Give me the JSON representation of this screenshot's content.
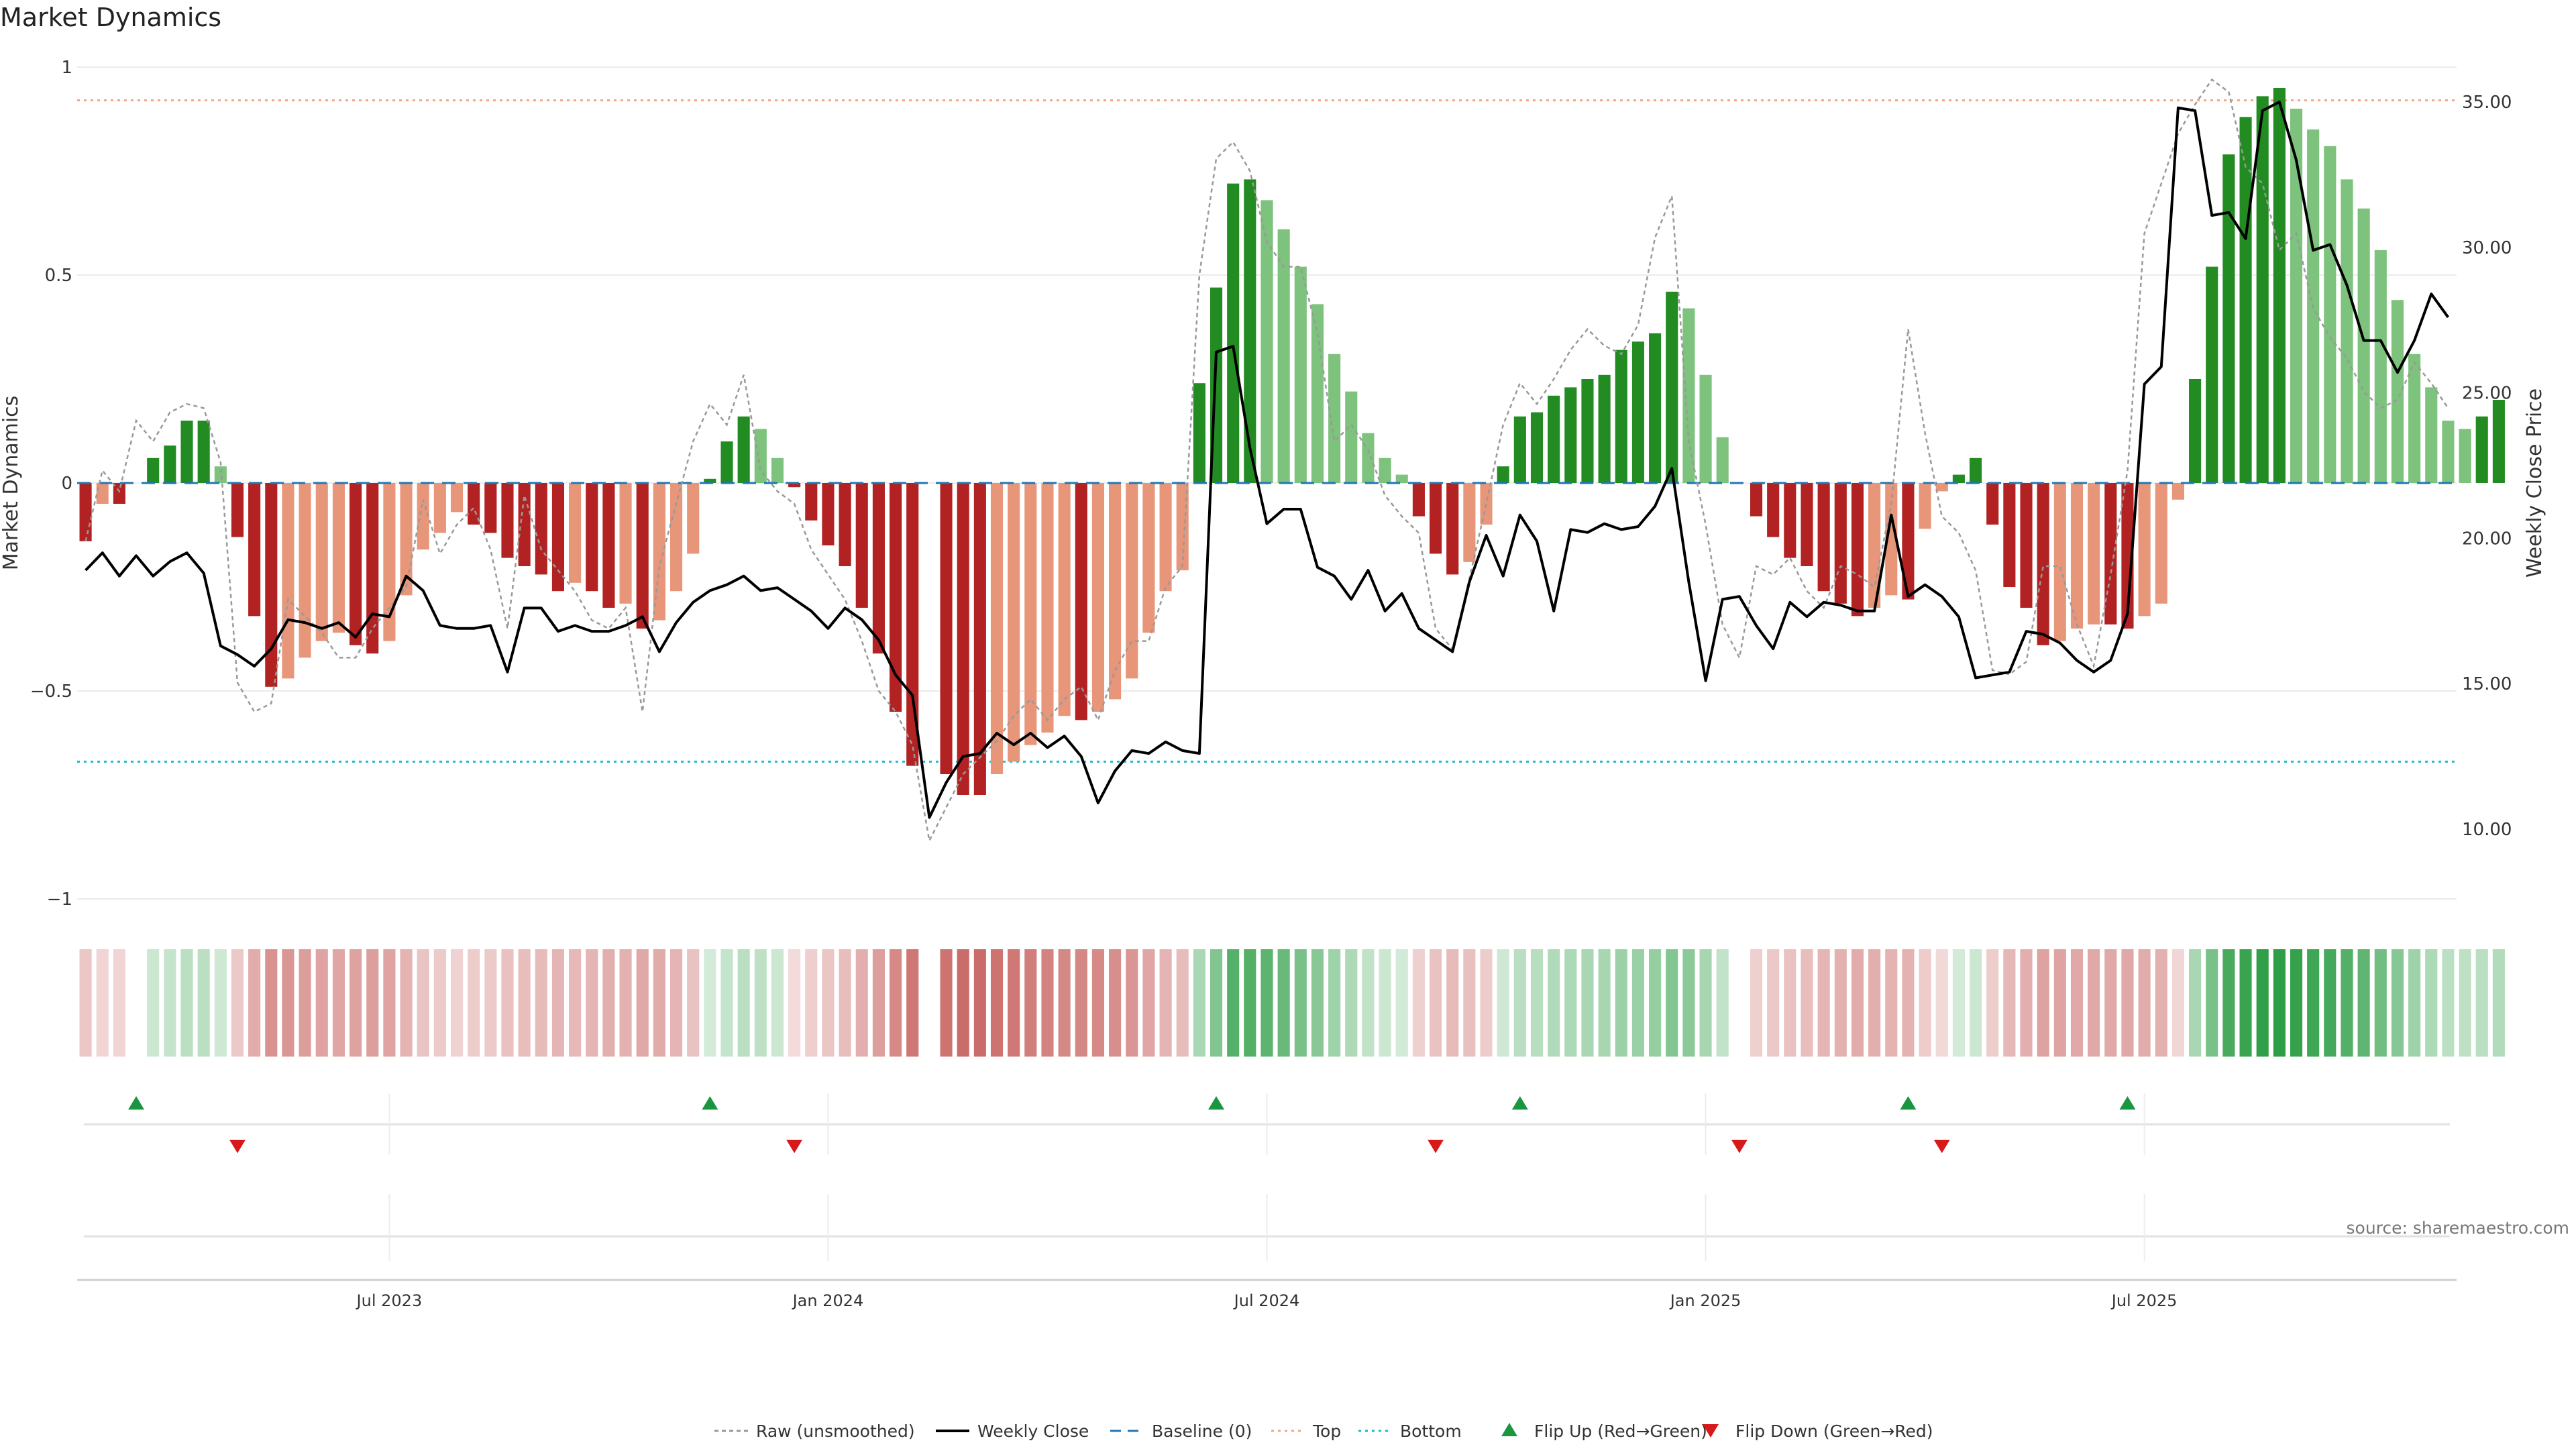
{
  "title": "Market Dynamics",
  "source": "source: sharemaestro.com",
  "colors": {
    "strong_green": "#228B22",
    "light_green": "#7DC27D",
    "strong_red": "#B22222",
    "light_red": "#E8967A",
    "close_line": "#000000",
    "raw_line": "#999999",
    "baseline": "#1f77b4",
    "top": "#F4A582",
    "bottom": "#17becf",
    "flip_up": "#1a9641",
    "flip_down": "#d7191c"
  },
  "chart_data": {
    "type": "bar",
    "title": "Market Dynamics",
    "ylabel": "Market Dynamics",
    "y2label": "Weekly Close Price",
    "ylim": [
      -1,
      1
    ],
    "y2lim": [
      7.6,
      36.2
    ],
    "yticks": [
      {
        "value": 1,
        "label": "1"
      },
      {
        "value": 0.5,
        "label": "0.5"
      },
      {
        "value": 0,
        "label": "0"
      },
      {
        "value": -0.5,
        "label": "−0.5"
      },
      {
        "value": -1,
        "label": "−1"
      }
    ],
    "y2ticks": [
      {
        "value": 35,
        "label": "35.00"
      },
      {
        "value": 30,
        "label": "30.00"
      },
      {
        "value": 25,
        "label": "25.00"
      },
      {
        "value": 20,
        "label": "20.00"
      },
      {
        "value": 15,
        "label": "15.00"
      },
      {
        "value": 10,
        "label": "10.00"
      }
    ],
    "xticks": [
      {
        "week": 18,
        "label": "Jul 2023"
      },
      {
        "week": 44,
        "label": "Jan 2024"
      },
      {
        "week": 70,
        "label": "Jul 2024"
      },
      {
        "week": 96,
        "label": "Jan 2025"
      },
      {
        "week": 122,
        "label": "Jul 2025"
      }
    ],
    "x_range": [
      -0.5,
      140.5
    ],
    "top_level": 0.92,
    "bottom_level": -0.67,
    "baseline": 0,
    "momentum": [
      -0.14,
      -0.05,
      -0.05,
      0,
      0.06,
      0.09,
      0.15,
      0.15,
      0.04,
      -0.13,
      -0.32,
      -0.49,
      -0.47,
      -0.42,
      -0.38,
      -0.36,
      -0.39,
      -0.41,
      -0.38,
      -0.27,
      -0.16,
      -0.12,
      -0.07,
      -0.1,
      -0.12,
      -0.18,
      -0.2,
      -0.22,
      -0.26,
      -0.24,
      -0.26,
      -0.3,
      -0.29,
      -0.35,
      -0.33,
      -0.26,
      -0.17,
      0.01,
      0.1,
      0.16,
      0.13,
      0.06,
      -0.01,
      -0.09,
      -0.15,
      -0.2,
      -0.3,
      -0.41,
      -0.55,
      -0.68,
      0,
      -0.7,
      -0.75,
      -0.75,
      -0.7,
      -0.67,
      -0.63,
      -0.6,
      -0.56,
      -0.57,
      -0.55,
      -0.52,
      -0.47,
      -0.36,
      -0.26,
      -0.21,
      0.24,
      0.47,
      0.72,
      0.73,
      0.68,
      0.61,
      0.52,
      0.43,
      0.31,
      0.22,
      0.12,
      0.06,
      0.02,
      -0.08,
      -0.17,
      -0.22,
      -0.19,
      -0.1,
      0.04,
      0.16,
      0.17,
      0.21,
      0.23,
      0.25,
      0.26,
      0.32,
      0.34,
      0.36,
      0.46,
      0.42,
      0.26,
      0.11,
      0,
      -0.08,
      -0.13,
      -0.18,
      -0.2,
      -0.26,
      -0.29,
      -0.32,
      -0.3,
      -0.27,
      -0.28,
      -0.11,
      -0.02,
      0.02,
      0.06,
      -0.1,
      -0.25,
      -0.3,
      -0.39,
      -0.38,
      -0.35,
      -0.34,
      -0.34,
      -0.35,
      -0.32,
      -0.29,
      -0.04,
      0.25,
      0.52,
      0.79,
      0.88,
      0.93,
      0.95,
      0.9,
      0.85,
      0.81,
      0.73,
      0.66,
      0.56,
      0.44,
      0.31,
      0.23,
      0.15,
      0.13,
      0.16,
      0.2
    ],
    "weekly_close": [
      18.9,
      19.5,
      18.7,
      19.4,
      18.7,
      19.2,
      19.5,
      18.8,
      16.3,
      16.0,
      15.6,
      16.2,
      17.2,
      17.1,
      16.9,
      17.1,
      16.6,
      17.4,
      17.3,
      18.7,
      18.2,
      17.0,
      16.9,
      16.9,
      17.0,
      15.4,
      17.6,
      17.6,
      16.8,
      17.0,
      16.8,
      16.8,
      17.0,
      17.3,
      16.1,
      17.1,
      17.8,
      18.2,
      18.4,
      18.7,
      18.2,
      18.3,
      17.9,
      17.5,
      16.9,
      17.6,
      17.2,
      16.5,
      15.3,
      14.6,
      10.4,
      11.6,
      12.5,
      12.6,
      13.3,
      12.9,
      13.3,
      12.8,
      13.2,
      12.5,
      10.9,
      12.0,
      12.7,
      12.6,
      13.0,
      12.7,
      12.6,
      26.4,
      26.6,
      23.1,
      20.5,
      21.0,
      21.0,
      19.0,
      18.7,
      17.9,
      18.9,
      17.5,
      18.1,
      16.9,
      16.5,
      16.1,
      18.5,
      20.1,
      18.7,
      20.8,
      19.9,
      17.5,
      20.3,
      20.2,
      20.5,
      20.3,
      20.4,
      21.1,
      22.4,
      18.5,
      15.1,
      17.9,
      18.0,
      17.0,
      16.2,
      17.8,
      17.3,
      17.8,
      17.7,
      17.5,
      17.5,
      20.8,
      18.0,
      18.4,
      18.0,
      17.3,
      15.2,
      15.3,
      15.4,
      16.8,
      16.7,
      16.4,
      15.8,
      15.4,
      15.8,
      17.4,
      25.3,
      25.9,
      34.8,
      34.7,
      31.1,
      31.2,
      30.3,
      34.7,
      35.0,
      33.0,
      29.9,
      30.1,
      28.7,
      26.8,
      26.8,
      25.7,
      26.8,
      28.4,
      27.6
    ],
    "raw": [
      -0.14,
      0.03,
      -0.02,
      0.15,
      0.1,
      0.17,
      0.19,
      0.18,
      0.05,
      -0.48,
      -0.55,
      -0.53,
      -0.28,
      -0.32,
      -0.36,
      -0.42,
      -0.42,
      -0.35,
      -0.3,
      -0.25,
      -0.04,
      -0.17,
      -0.1,
      -0.06,
      -0.16,
      -0.35,
      -0.03,
      -0.16,
      -0.21,
      -0.26,
      -0.33,
      -0.35,
      -0.3,
      -0.55,
      -0.2,
      -0.05,
      0.1,
      0.19,
      0.14,
      0.26,
      0.03,
      -0.02,
      -0.05,
      -0.16,
      -0.22,
      -0.28,
      -0.38,
      -0.5,
      -0.55,
      -0.63,
      -0.86,
      -0.78,
      -0.7,
      -0.66,
      -0.62,
      -0.56,
      -0.52,
      -0.57,
      -0.52,
      -0.49,
      -0.57,
      -0.45,
      -0.38,
      -0.38,
      -0.25,
      -0.2,
      0.5,
      0.78,
      0.82,
      0.75,
      0.58,
      0.52,
      0.52,
      0.36,
      0.1,
      0.14,
      0.08,
      -0.03,
      -0.08,
      -0.12,
      -0.35,
      -0.4,
      -0.23,
      -0.05,
      0.14,
      0.24,
      0.19,
      0.25,
      0.32,
      0.37,
      0.33,
      0.31,
      0.38,
      0.59,
      0.69,
      0.1,
      -0.1,
      -0.34,
      -0.42,
      -0.2,
      -0.22,
      -0.18,
      -0.26,
      -0.3,
      -0.2,
      -0.22,
      -0.25,
      -0.05,
      0.37,
      0.12,
      -0.08,
      -0.12,
      -0.21,
      -0.45,
      -0.46,
      -0.43,
      -0.2,
      -0.2,
      -0.34,
      -0.44,
      -0.22,
      0.03,
      0.6,
      0.72,
      0.84,
      0.91,
      0.97,
      0.94,
      0.76,
      0.72,
      0.56,
      0.6,
      0.42,
      0.35,
      0.3,
      0.22,
      0.18,
      0.2,
      0.29,
      0.24,
      0.18
    ],
    "flip_up_weeks": [
      3,
      37,
      67,
      85,
      108,
      121
    ],
    "flip_down_weeks": [
      9,
      42,
      80,
      98,
      110
    ],
    "legend_position": "bottom",
    "legend": [
      {
        "key": "raw",
        "label": "Raw (unsmoothed)"
      },
      {
        "key": "close",
        "label": "Weekly Close"
      },
      {
        "key": "baseline",
        "label": "Baseline (0)"
      },
      {
        "key": "top",
        "label": "Top"
      },
      {
        "key": "bottom",
        "label": "Bottom"
      },
      {
        "key": "flip_up",
        "label": "Flip Up (Red→Green)"
      },
      {
        "key": "flip_down",
        "label": "Flip Down (Green→Red)"
      }
    ]
  }
}
